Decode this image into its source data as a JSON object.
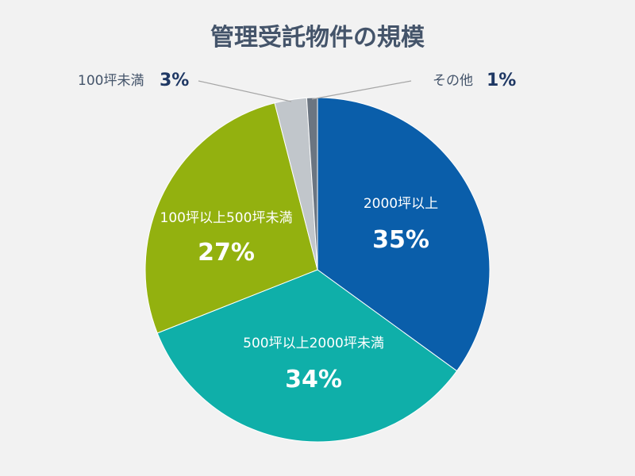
{
  "title": "管理受託物件の規模",
  "chart_data": {
    "type": "pie",
    "title": "管理受託物件の規模",
    "slices": [
      {
        "label": "2000坪以上",
        "value": 35,
        "value_label": "35%",
        "color": "#0a5eaa"
      },
      {
        "label": "500坪以上2000坪未満",
        "value": 34,
        "value_label": "34%",
        "color": "#0fafa9"
      },
      {
        "label": "100坪以上500坪未満",
        "value": 27,
        "value_label": "27%",
        "color": "#93b10f"
      },
      {
        "label": "100坪未満",
        "value": 3,
        "value_label": "3%",
        "color": "#c1c6cb"
      },
      {
        "label": "その他",
        "value": 1,
        "value_label": "1%",
        "color": "#6b7581"
      }
    ],
    "start": "12 o'clock",
    "direction": "clockwise",
    "label_colors": {
      "inside": "#ffffff",
      "outside_text": "#44546a",
      "outside_value": "#1f3864",
      "leader_line": "#a6a6a6"
    }
  }
}
